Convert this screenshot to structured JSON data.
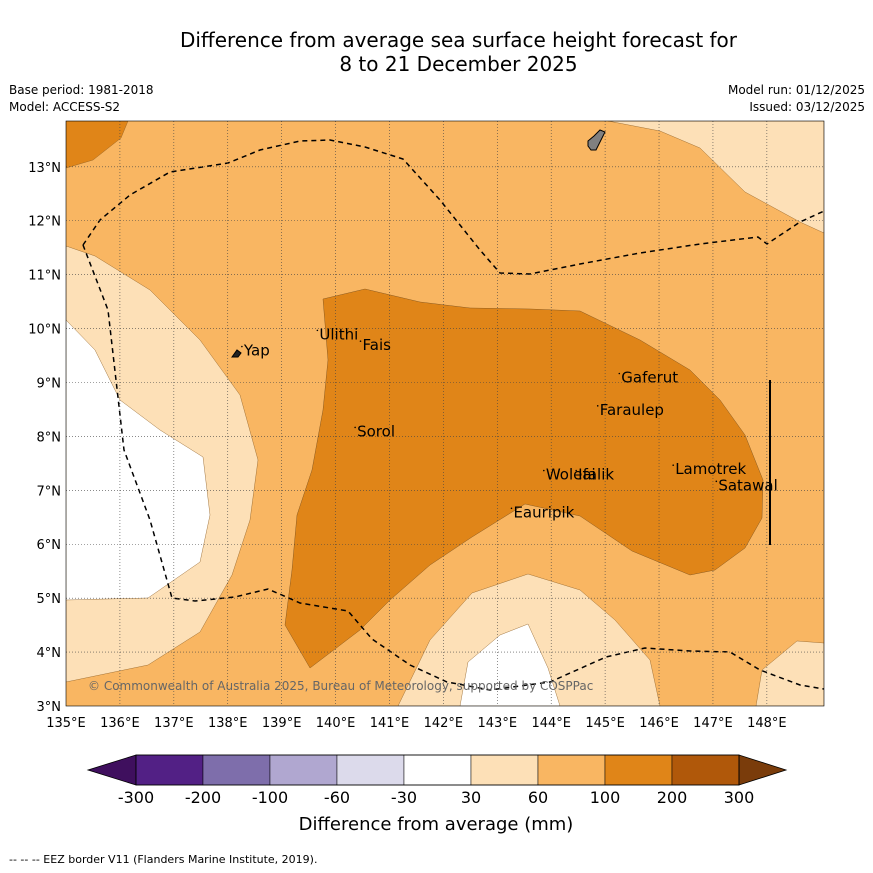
{
  "title": {
    "line1": "Difference from average sea surface height forecast for",
    "line2": "8 to 21 December 2025"
  },
  "meta": {
    "base_period": "Base period: 1981-2018",
    "model": "Model: ACCESS-S2",
    "model_run": "Model run: 01/12/2025",
    "issued": "Issued: 03/12/2025"
  },
  "map": {
    "lon_labels": [
      "135°E",
      "136°E",
      "137°E",
      "138°E",
      "139°E",
      "140°E",
      "141°E",
      "142°E",
      "143°E",
      "144°E",
      "145°E",
      "146°E",
      "147°E",
      "148°E"
    ],
    "lat_labels": [
      "13°N",
      "12°N",
      "11°N",
      "10°N",
      "9°N",
      "8°N",
      "7°N",
      "6°N",
      "5°N",
      "4°N",
      "3°N"
    ],
    "places": [
      {
        "name": "Yap",
        "lon": 138.3,
        "lat": 9.5
      },
      {
        "name": "Ulithi",
        "lon": 139.7,
        "lat": 9.8
      },
      {
        "name": "Fais",
        "lon": 140.5,
        "lat": 9.6
      },
      {
        "name": "Gaferut",
        "lon": 145.3,
        "lat": 9.0
      },
      {
        "name": "Faraulep",
        "lon": 144.9,
        "lat": 8.4
      },
      {
        "name": "Sorol",
        "lon": 140.4,
        "lat": 8.0
      },
      {
        "name": "Woleai",
        "lon": 143.9,
        "lat": 7.2
      },
      {
        "name": "Ifalik",
        "lon": 144.5,
        "lat": 7.2
      },
      {
        "name": "Lamotrek",
        "lon": 146.3,
        "lat": 7.3
      },
      {
        "name": "Satawal",
        "lon": 147.1,
        "lat": 7.0
      },
      {
        "name": "Eauripik",
        "lon": 143.3,
        "lat": 6.5
      }
    ],
    "copyright": "© Commonwealth of Australia 2025, Bureau of Meteorology, supported by COSPPac"
  },
  "colorbar": {
    "labels": [
      "-300",
      "-200",
      "-100",
      "-60",
      "-30",
      "30",
      "60",
      "100",
      "200",
      "300"
    ],
    "colors": [
      "#3f0f5e",
      "#522085",
      "#7e6eab",
      "#b0a7d0",
      "#dcdaeb",
      "#ffffff",
      "#fde0b7",
      "#f9b662",
      "#e08518",
      "#b0580a",
      "#7a3c0b"
    ],
    "label": "Difference from average (mm)"
  },
  "footer": {
    "legend": "--  --  -- EEZ border V11 (Flanders Marine Institute, 2019)."
  }
}
